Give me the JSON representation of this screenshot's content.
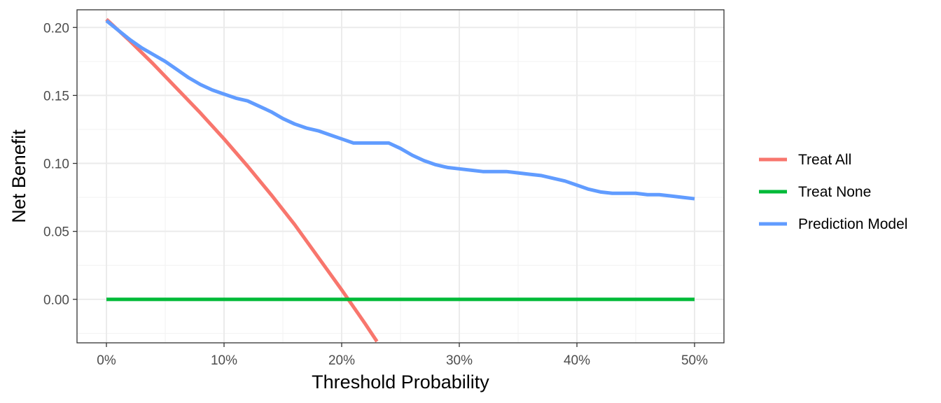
{
  "chart_data": {
    "type": "line",
    "xlabel": "Threshold Probability",
    "ylabel": "Net Benefit",
    "xlim": [
      -0.025,
      0.525
    ],
    "ylim": [
      -0.032,
      0.213
    ],
    "x_ticks": [
      0,
      0.1,
      0.2,
      0.3,
      0.4,
      0.5
    ],
    "x_tick_labels": [
      "0%",
      "10%",
      "20%",
      "30%",
      "40%",
      "50%"
    ],
    "y_ticks": [
      0,
      0.05,
      0.1,
      0.15,
      0.2
    ],
    "y_tick_labels": [
      "0.00",
      "0.05",
      "0.10",
      "0.15",
      "0.20"
    ],
    "grid": true,
    "legend_position": "right",
    "series": [
      {
        "name": "Treat All",
        "color": "#F8766D",
        "x": [
          0,
          0.02,
          0.04,
          0.06,
          0.08,
          0.1,
          0.12,
          0.14,
          0.16,
          0.18,
          0.2,
          0.22,
          0.23
        ],
        "values": [
          0.206,
          0.19,
          0.173,
          0.155,
          0.137,
          0.118,
          0.098,
          0.077,
          0.055,
          0.031,
          0.007,
          -0.018,
          -0.031
        ]
      },
      {
        "name": "Treat None",
        "color": "#00BA38",
        "x": [
          0,
          0.5
        ],
        "values": [
          0,
          0
        ]
      },
      {
        "name": "Prediction Model",
        "color": "#619CFF",
        "x": [
          0,
          0.01,
          0.02,
          0.03,
          0.04,
          0.05,
          0.06,
          0.07,
          0.08,
          0.09,
          0.1,
          0.11,
          0.12,
          0.13,
          0.14,
          0.15,
          0.16,
          0.17,
          0.18,
          0.19,
          0.2,
          0.21,
          0.22,
          0.23,
          0.24,
          0.25,
          0.26,
          0.27,
          0.28,
          0.29,
          0.3,
          0.31,
          0.32,
          0.33,
          0.34,
          0.35,
          0.36,
          0.37,
          0.38,
          0.39,
          0.4,
          0.41,
          0.42,
          0.43,
          0.44,
          0.45,
          0.46,
          0.47,
          0.48,
          0.49,
          0.5
        ],
        "values": [
          0.205,
          0.198,
          0.191,
          0.185,
          0.18,
          0.175,
          0.169,
          0.163,
          0.158,
          0.154,
          0.151,
          0.148,
          0.146,
          0.142,
          0.138,
          0.133,
          0.129,
          0.126,
          0.124,
          0.121,
          0.118,
          0.115,
          0.115,
          0.115,
          0.115,
          0.111,
          0.106,
          0.102,
          0.099,
          0.097,
          0.096,
          0.095,
          0.094,
          0.094,
          0.094,
          0.093,
          0.092,
          0.091,
          0.089,
          0.087,
          0.084,
          0.081,
          0.079,
          0.078,
          0.078,
          0.078,
          0.077,
          0.077,
          0.076,
          0.075,
          0.074
        ]
      }
    ]
  }
}
